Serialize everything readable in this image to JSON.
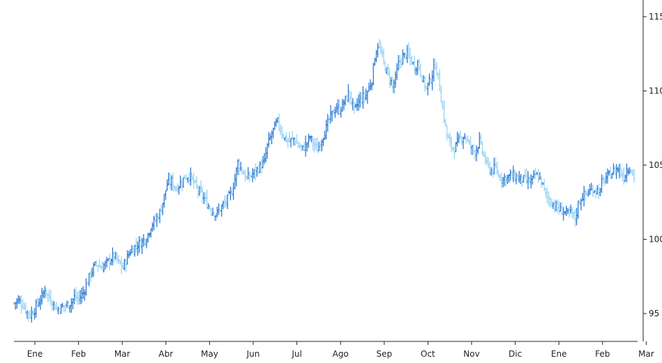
{
  "chart_data": {
    "type": "ohlc",
    "colors": {
      "up": "#1a6fd1",
      "down": "#8fd0f2"
    },
    "x_tick_labels": [
      "Ene",
      "Feb",
      "Mar",
      "Abr",
      "May",
      "Jun",
      "Jul",
      "Ago",
      "Sep",
      "Oct",
      "Nov",
      "Dic",
      "Ene",
      "Feb",
      "Mar"
    ],
    "y_tick_labels": [
      "95",
      "100",
      "105",
      "110",
      "115"
    ],
    "y_ticks": [
      95,
      100,
      105,
      110,
      115
    ],
    "ylim": [
      93.3,
      116.3
    ],
    "grid": false,
    "legend": "none",
    "title": "",
    "xlabel": "",
    "ylabel": "",
    "series": [
      {
        "values": [
          [
            0,
            95.7
          ],
          [
            0.15,
            95.9
          ],
          [
            0.3,
            95.6
          ],
          [
            0.45,
            95.1
          ],
          [
            0.55,
            94.9
          ],
          [
            0.7,
            95.3
          ],
          [
            0.85,
            95.8
          ],
          [
            0.95,
            96.1
          ],
          [
            1.05,
            96.7
          ],
          [
            1.15,
            96.2
          ],
          [
            1.3,
            95.8
          ],
          [
            1.45,
            95.3
          ],
          [
            1.6,
            95.4
          ],
          [
            1.8,
            95.6
          ],
          [
            1.95,
            95.8
          ],
          [
            2.05,
            96.1
          ],
          [
            2.2,
            96.0
          ],
          [
            2.35,
            96.4
          ],
          [
            2.5,
            97.2
          ],
          [
            2.65,
            97.9
          ],
          [
            2.8,
            98.4
          ],
          [
            2.95,
            98.1
          ],
          [
            3.1,
            98.3
          ],
          [
            3.25,
            98.6
          ],
          [
            3.4,
            98.9
          ],
          [
            3.55,
            98.4
          ],
          [
            3.7,
            98.1
          ],
          [
            3.85,
            98.8
          ],
          [
            3.95,
            99.2
          ],
          [
            4.1,
            99.5
          ],
          [
            4.3,
            99.8
          ],
          [
            4.5,
            100.1
          ],
          [
            4.65,
            100.9
          ],
          [
            4.8,
            101.3
          ],
          [
            4.95,
            101.8
          ],
          [
            5.05,
            102.5
          ],
          [
            5.2,
            103.7
          ],
          [
            5.35,
            103.9
          ],
          [
            5.5,
            103.4
          ],
          [
            5.65,
            103.8
          ],
          [
            5.8,
            104.2
          ],
          [
            5.95,
            104.3
          ],
          [
            6.1,
            103.8
          ],
          [
            6.25,
            103.3
          ],
          [
            6.4,
            102.9
          ],
          [
            6.55,
            102.4
          ],
          [
            6.7,
            102.0
          ],
          [
            6.85,
            101.7
          ],
          [
            6.95,
            101.9
          ],
          [
            7.1,
            102.3
          ],
          [
            7.25,
            102.7
          ],
          [
            7.4,
            103.2
          ],
          [
            7.5,
            104.1
          ],
          [
            7.6,
            105.2
          ],
          [
            7.75,
            104.6
          ],
          [
            7.9,
            104.1
          ],
          [
            8.05,
            104.3
          ],
          [
            8.2,
            104.6
          ],
          [
            8.35,
            104.9
          ],
          [
            8.5,
            105.2
          ],
          [
            8.6,
            106.3
          ],
          [
            8.75,
            107.1
          ],
          [
            8.85,
            107.6
          ],
          [
            8.95,
            107.9
          ],
          [
            9.05,
            107.4
          ],
          [
            9.2,
            106.8
          ],
          [
            9.35,
            106.6
          ],
          [
            9.5,
            106.8
          ],
          [
            9.65,
            106.3
          ],
          [
            9.8,
            106.1
          ],
          [
            9.95,
            106.5
          ],
          [
            10.05,
            106.9
          ],
          [
            10.15,
            106.5
          ],
          [
            10.3,
            106.0
          ],
          [
            10.45,
            106.8
          ],
          [
            10.6,
            107.5
          ],
          [
            10.7,
            108.1
          ],
          [
            10.85,
            108.6
          ],
          [
            10.95,
            108.9
          ],
          [
            11.05,
            108.7
          ],
          [
            11.2,
            109.2
          ],
          [
            11.35,
            109.8
          ],
          [
            11.45,
            109.4
          ],
          [
            11.55,
            108.6
          ],
          [
            11.7,
            109.3
          ],
          [
            11.85,
            109.6
          ],
          [
            11.95,
            109.7
          ],
          [
            12.05,
            110.2
          ],
          [
            12.15,
            110.8
          ],
          [
            12.25,
            112.3
          ],
          [
            12.35,
            113.1
          ],
          [
            12.45,
            112.6
          ],
          [
            12.55,
            111.9
          ],
          [
            12.65,
            111.3
          ],
          [
            12.75,
            110.9
          ],
          [
            12.85,
            110.3
          ],
          [
            12.95,
            110.8
          ],
          [
            13.05,
            111.8
          ],
          [
            13.2,
            112.3
          ],
          [
            13.35,
            112.5
          ],
          [
            13.5,
            112.0
          ],
          [
            13.6,
            111.6
          ],
          [
            13.7,
            111.9
          ],
          [
            13.8,
            111.3
          ],
          [
            13.9,
            110.6
          ],
          [
            14.0,
            110.2
          ],
          [
            14.1,
            110.6
          ],
          [
            14.2,
            111.1
          ],
          [
            14.3,
            111.8
          ],
          [
            14.4,
            110.9
          ],
          [
            14.5,
            109.5
          ],
          [
            14.6,
            108.2
          ],
          [
            14.7,
            107.0
          ],
          [
            14.8,
            106.4
          ],
          [
            14.95,
            106.1
          ],
          [
            15.05,
            106.5
          ],
          [
            15.15,
            106.8
          ],
          [
            15.3,
            107.0
          ],
          [
            15.45,
            106.4
          ],
          [
            15.55,
            106.1
          ],
          [
            15.65,
            105.9
          ],
          [
            15.8,
            106.6
          ],
          [
            15.95,
            105.6
          ],
          [
            16.05,
            105.0
          ],
          [
            16.2,
            104.6
          ],
          [
            16.35,
            104.8
          ],
          [
            16.45,
            104.3
          ],
          [
            16.6,
            104.1
          ],
          [
            16.75,
            104.2
          ],
          [
            16.9,
            104.3
          ],
          [
            17.05,
            104.2
          ],
          [
            17.2,
            104.1
          ],
          [
            17.35,
            104.0
          ],
          [
            17.5,
            103.9
          ],
          [
            17.6,
            104.0
          ],
          [
            17.7,
            104.3
          ],
          [
            17.8,
            104.2
          ],
          [
            17.9,
            103.9
          ],
          [
            17.95,
            103.6
          ],
          [
            18.05,
            103.0
          ],
          [
            18.2,
            102.6
          ],
          [
            18.35,
            102.3
          ],
          [
            18.5,
            102.0
          ],
          [
            18.65,
            101.9
          ],
          [
            18.8,
            101.7
          ],
          [
            18.95,
            101.8
          ],
          [
            19.05,
            101.3
          ],
          [
            19.15,
            102.4
          ],
          [
            19.3,
            102.9
          ],
          [
            19.45,
            103.1
          ],
          [
            19.6,
            103.3
          ],
          [
            19.75,
            103.4
          ],
          [
            19.9,
            103.2
          ],
          [
            19.95,
            103.8
          ],
          [
            20.05,
            104.0
          ],
          [
            20.2,
            104.3
          ],
          [
            20.35,
            104.6
          ],
          [
            20.5,
            104.8
          ],
          [
            20.6,
            104.5
          ],
          [
            20.7,
            104.2
          ],
          [
            20.8,
            104.7
          ],
          [
            20.9,
            104.9
          ],
          [
            21.0,
            104.4
          ],
          [
            21.05,
            104.2
          ]
        ]
      }
    ]
  }
}
